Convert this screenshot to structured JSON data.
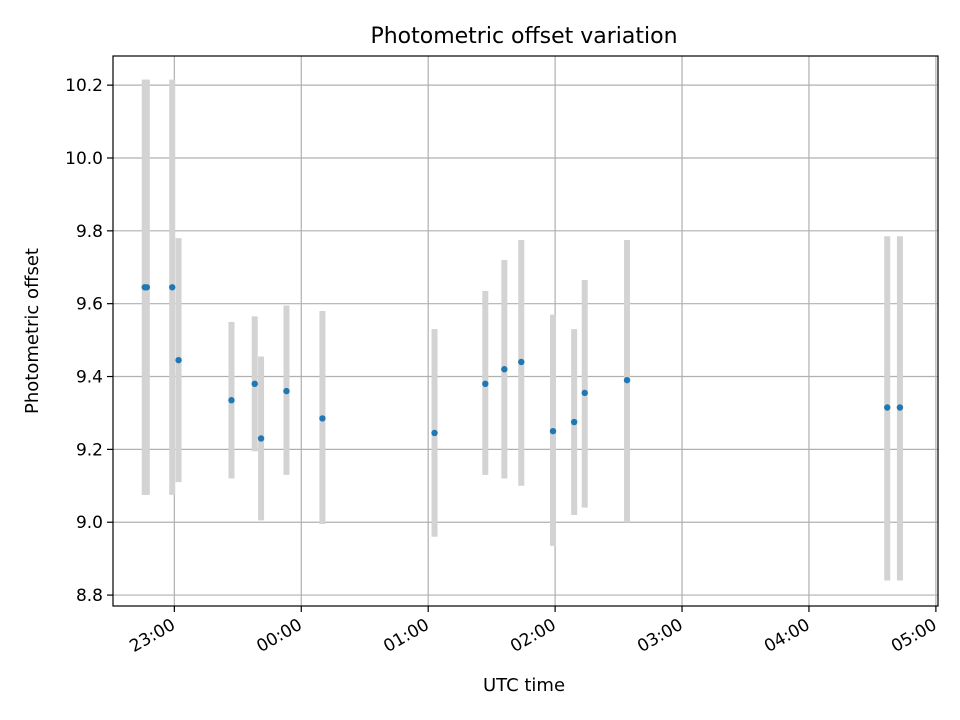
{
  "chart_data": {
    "type": "scatter",
    "title": "Photometric offset variation",
    "xlabel": "UTC time",
    "ylabel": "Photometric offset",
    "x_tick_labels": [
      "23:00",
      "00:00",
      "01:00",
      "02:00",
      "03:00",
      "04:00",
      "05:00"
    ],
    "y_tick_labels": [
      "8.8",
      "9.0",
      "9.2",
      "9.4",
      "9.6",
      "9.8",
      "10.0",
      "10.2"
    ],
    "xlim": [
      "22:31",
      "05:01"
    ],
    "ylim": [
      8.77,
      10.28
    ],
    "grid": true,
    "points": [
      {
        "x": "22:46",
        "y": 9.645,
        "yerr_low": 9.075,
        "yerr_high": 10.215
      },
      {
        "x": "22:47",
        "y": 9.645,
        "yerr_low": 9.075,
        "yerr_high": 10.215
      },
      {
        "x": "22:59",
        "y": 9.645,
        "yerr_low": 9.075,
        "yerr_high": 10.215
      },
      {
        "x": "23:02",
        "y": 9.445,
        "yerr_low": 9.11,
        "yerr_high": 9.78
      },
      {
        "x": "23:27",
        "y": 9.335,
        "yerr_low": 9.12,
        "yerr_high": 9.55
      },
      {
        "x": "23:38",
        "y": 9.38,
        "yerr_low": 9.195,
        "yerr_high": 9.565
      },
      {
        "x": "23:41",
        "y": 9.23,
        "yerr_low": 9.005,
        "yerr_high": 9.455
      },
      {
        "x": "23:53",
        "y": 9.36,
        "yerr_low": 9.13,
        "yerr_high": 9.595
      },
      {
        "x": "00:10",
        "y": 9.285,
        "yerr_low": 8.995,
        "yerr_high": 9.58
      },
      {
        "x": "01:03",
        "y": 9.245,
        "yerr_low": 8.96,
        "yerr_high": 9.53
      },
      {
        "x": "01:27",
        "y": 9.38,
        "yerr_low": 9.13,
        "yerr_high": 9.635
      },
      {
        "x": "01:36",
        "y": 9.42,
        "yerr_low": 9.12,
        "yerr_high": 9.72
      },
      {
        "x": "01:44",
        "y": 9.44,
        "yerr_low": 9.1,
        "yerr_high": 9.775
      },
      {
        "x": "01:59",
        "y": 9.25,
        "yerr_low": 8.935,
        "yerr_high": 9.57
      },
      {
        "x": "02:09",
        "y": 9.275,
        "yerr_low": 9.02,
        "yerr_high": 9.53
      },
      {
        "x": "02:14",
        "y": 9.355,
        "yerr_low": 9.04,
        "yerr_high": 9.665
      },
      {
        "x": "02:34",
        "y": 9.39,
        "yerr_low": 9.0,
        "yerr_high": 9.775
      },
      {
        "x": "04:37",
        "y": 9.315,
        "yerr_low": 8.84,
        "yerr_high": 9.785
      },
      {
        "x": "04:43",
        "y": 9.315,
        "yerr_low": 8.84,
        "yerr_high": 9.785
      }
    ],
    "colors": {
      "marker": "#1f77b4",
      "errorbar": "#d3d3d3",
      "grid": "#b0b0b0",
      "axes": "#000000"
    }
  }
}
